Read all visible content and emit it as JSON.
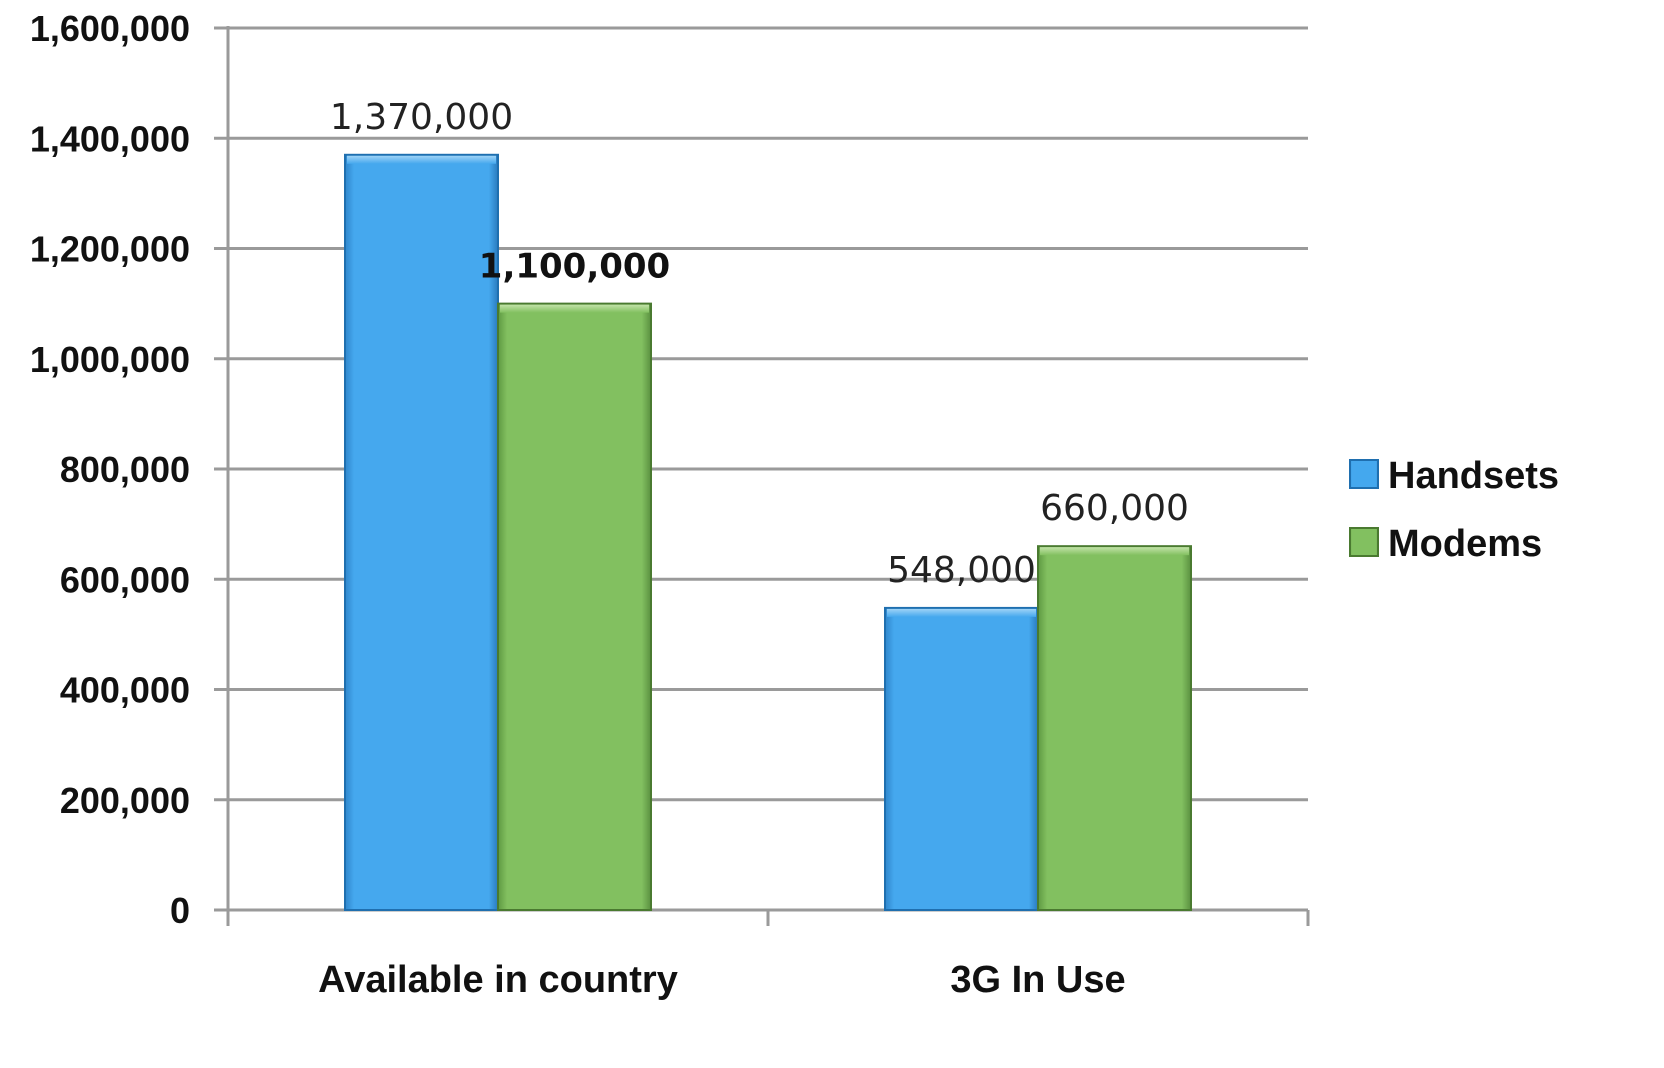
{
  "chart_data": {
    "type": "bar",
    "title": "",
    "xlabel": "",
    "ylabel": "",
    "categories": [
      "Available in country",
      "3G In Use"
    ],
    "series": [
      {
        "name": "Handsets",
        "values": [
          1370000,
          548000
        ],
        "value_labels": [
          "1,370,000",
          "548,000"
        ],
        "color": "#45A8EE",
        "edge_color": "#1F6FAF"
      },
      {
        "name": "Modems",
        "values": [
          1100000,
          660000
        ],
        "value_labels": [
          "1,100,000",
          "660,000"
        ],
        "color": "#82C060",
        "edge_color": "#4A7A30"
      }
    ],
    "bold_labels": [
      [
        false,
        false
      ],
      [
        true,
        false
      ]
    ],
    "ylim": [
      0,
      1600000
    ],
    "yticks": [
      0,
      200000,
      400000,
      600000,
      800000,
      1000000,
      1200000,
      1400000,
      1600000
    ],
    "ytick_labels": [
      "0",
      "200,000",
      "400,000",
      "600,000",
      "800,000",
      "1,000,000",
      "1,200,000",
      "1,400,000",
      "1,600,000"
    ],
    "grid": true,
    "gridline_color": "#9A9A9A",
    "legend_position": "right"
  }
}
